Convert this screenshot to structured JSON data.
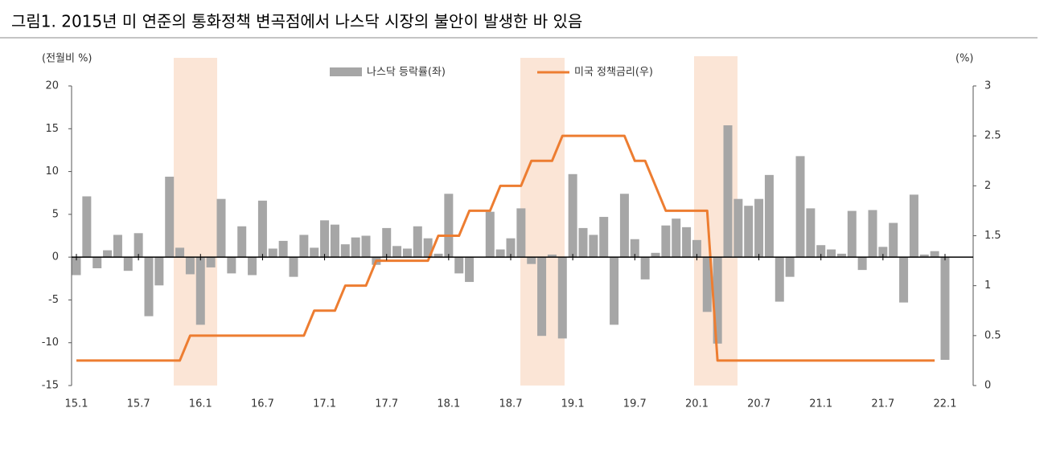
{
  "chart_data": {
    "type": "bar",
    "title": "그림1. 2015년 미 연준의 통화정책 변곡점에서 나스닥 시장의 불안이 발생한 바 있음",
    "y_label": "(전월비 %)",
    "y2_label": "(%)",
    "categories": [
      "15.1",
      null,
      null,
      null,
      null,
      null,
      "15.7",
      null,
      null,
      null,
      null,
      null,
      "16.1",
      null,
      null,
      null,
      null,
      null,
      "16.7",
      null,
      null,
      null,
      null,
      null,
      "17.1",
      null,
      null,
      null,
      null,
      null,
      "17.7",
      null,
      null,
      null,
      null,
      null,
      "18.1",
      null,
      null,
      null,
      null,
      null,
      "18.7",
      null,
      null,
      null,
      null,
      null,
      "19.1",
      null,
      null,
      null,
      null,
      null,
      "19.7",
      null,
      null,
      null,
      null,
      null,
      "20.1",
      null,
      null,
      null,
      null,
      null,
      "20.7",
      null,
      null,
      null,
      null,
      null,
      "21.1",
      null,
      null,
      null,
      null,
      null,
      "21.7",
      null,
      null,
      null,
      null,
      null,
      "22.1"
    ],
    "series": [
      {
        "name": "나스닥 등락률(좌)",
        "type": "bar",
        "color": "#a6a6a6",
        "values": [
          -2.1,
          7.1,
          -1.3,
          0.8,
          2.6,
          -1.6,
          2.8,
          -6.9,
          -3.3,
          9.4,
          1.1,
          -2.0,
          -7.9,
          -1.2,
          6.8,
          -1.9,
          3.6,
          -2.1,
          6.6,
          1.0,
          1.9,
          -2.3,
          2.6,
          1.1,
          4.3,
          3.8,
          1.5,
          2.3,
          2.5,
          -0.9,
          3.4,
          1.3,
          1.0,
          3.6,
          2.2,
          0.4,
          7.4,
          -1.9,
          -2.9,
          0.0,
          5.3,
          0.9,
          2.2,
          5.7,
          -0.8,
          -9.2,
          0.3,
          -9.5,
          9.7,
          3.4,
          2.6,
          4.7,
          -7.9,
          7.4,
          2.1,
          -2.6,
          0.5,
          3.7,
          4.5,
          3.5,
          2.0,
          -6.4,
          -10.1,
          15.4,
          6.8,
          6.0,
          6.8,
          9.6,
          -5.2,
          -2.3,
          11.8,
          5.7,
          1.4,
          0.9,
          0.4,
          5.4,
          -1.5,
          5.5,
          1.2,
          4.0,
          -5.3,
          7.3,
          0.3,
          0.7,
          -12.0
        ]
      },
      {
        "name": "미국 정책금리(우)",
        "type": "line",
        "color": "#ed7d31",
        "axis": "y2",
        "values": [
          0.25,
          0.25,
          0.25,
          0.25,
          0.25,
          0.25,
          0.25,
          0.25,
          0.25,
          0.25,
          0.25,
          0.5,
          0.5,
          0.5,
          0.5,
          0.5,
          0.5,
          0.5,
          0.5,
          0.5,
          0.5,
          0.5,
          0.5,
          0.75,
          0.75,
          0.75,
          1.0,
          1.0,
          1.0,
          1.25,
          1.25,
          1.25,
          1.25,
          1.25,
          1.25,
          1.5,
          1.5,
          1.5,
          1.75,
          1.75,
          1.75,
          2.0,
          2.0,
          2.0,
          2.25,
          2.25,
          2.25,
          2.5,
          2.5,
          2.5,
          2.5,
          2.5,
          2.5,
          2.5,
          2.25,
          2.25,
          2.0,
          1.75,
          1.75,
          1.75,
          1.75,
          1.75,
          0.25,
          0.25,
          0.25,
          0.25,
          0.25,
          0.25,
          0.25,
          0.25,
          0.25,
          0.25,
          0.25,
          0.25,
          0.25,
          0.25,
          0.25,
          0.25,
          0.25,
          0.25,
          0.25,
          0.25,
          0.25,
          0.25,
          null
        ]
      }
    ],
    "ylim": [
      -15,
      20
    ],
    "yticks": [
      -15,
      -10,
      -5,
      0,
      5,
      10,
      15,
      20
    ],
    "y2lim": [
      0,
      3
    ],
    "y2ticks": [
      0,
      0.5,
      1,
      1.5,
      2,
      2.5,
      3
    ]
  }
}
